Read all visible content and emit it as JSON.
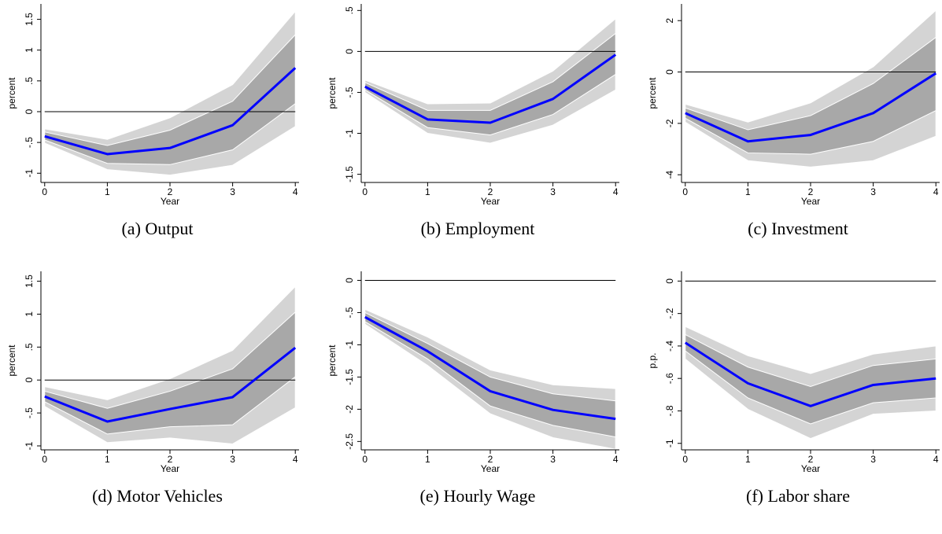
{
  "chart_data": [
    {
      "type": "line",
      "caption": "(a) Output",
      "ylabel": "percent",
      "xlabel": "Year",
      "x": [
        0,
        1,
        2,
        3,
        4
      ],
      "xlim": [
        -0.06,
        4.06
      ],
      "xticks": [
        0,
        1,
        2,
        3,
        4
      ],
      "ylim": [
        -1.15,
        1.75
      ],
      "yticks": [
        {
          "value": -1,
          "label": "-1"
        },
        {
          "value": -0.5,
          "label": "-.5"
        },
        0,
        {
          "value": 0.5,
          "label": ".5"
        },
        1,
        1.5
      ],
      "zero_line": true,
      "bands": [
        {
          "color": "#d4d4d4",
          "lower": [
            -0.51,
            -0.94,
            -1.03,
            -0.87,
            -0.24
          ],
          "upper": [
            -0.28,
            -0.45,
            -0.1,
            0.44,
            1.63
          ]
        },
        {
          "color": "#a8a8a8",
          "lower": [
            -0.46,
            -0.84,
            -0.86,
            -0.62,
            0.13
          ],
          "upper": [
            -0.33,
            -0.55,
            -0.3,
            0.17,
            1.25
          ]
        }
      ],
      "series": [
        {
          "color": "#0000ff",
          "values": [
            -0.4,
            -0.69,
            -0.59,
            -0.22,
            0.71
          ]
        }
      ]
    },
    {
      "type": "line",
      "caption": "(b) Employment",
      "ylabel": "percent",
      "xlabel": "Year",
      "x": [
        0,
        1,
        2,
        3,
        4
      ],
      "xlim": [
        -0.06,
        4.06
      ],
      "xticks": [
        0,
        1,
        2,
        3,
        4
      ],
      "ylim": [
        -1.6,
        0.58
      ],
      "yticks": [
        {
          "value": -1.5,
          "label": "-1.5"
        },
        -1,
        {
          "value": -0.5,
          "label": "-.5"
        },
        0,
        {
          "value": 0.5,
          "label": ".5"
        }
      ],
      "zero_line": true,
      "bands": [
        {
          "color": "#d4d4d4",
          "lower": [
            -0.5,
            -1.0,
            -1.12,
            -0.9,
            -0.47
          ],
          "upper": [
            -0.35,
            -0.64,
            -0.63,
            -0.24,
            0.4
          ]
        },
        {
          "color": "#a8a8a8",
          "lower": [
            -0.47,
            -0.93,
            -1.02,
            -0.77,
            -0.28
          ],
          "upper": [
            -0.38,
            -0.72,
            -0.72,
            -0.37,
            0.22
          ]
        }
      ],
      "series": [
        {
          "color": "#0000ff",
          "values": [
            -0.43,
            -0.83,
            -0.87,
            -0.58,
            -0.04
          ]
        }
      ]
    },
    {
      "type": "line",
      "caption": "(c) Investment",
      "ylabel": "percent",
      "xlabel": "Year",
      "x": [
        0,
        1,
        2,
        3,
        4
      ],
      "xlim": [
        -0.06,
        4.06
      ],
      "xticks": [
        0,
        1,
        2,
        3,
        4
      ],
      "ylim": [
        -4.3,
        2.65
      ],
      "yticks": [
        -4,
        -2,
        0,
        2
      ],
      "zero_line": true,
      "bands": [
        {
          "color": "#d4d4d4",
          "lower": [
            -1.95,
            -3.45,
            -3.7,
            -3.45,
            -2.5
          ],
          "upper": [
            -1.25,
            -1.95,
            -1.2,
            0.2,
            2.4
          ]
        },
        {
          "color": "#a8a8a8",
          "lower": [
            -1.8,
            -3.15,
            -3.2,
            -2.7,
            -1.5
          ],
          "upper": [
            -1.4,
            -2.25,
            -1.7,
            -0.45,
            1.35
          ]
        }
      ],
      "series": [
        {
          "color": "#0000ff",
          "values": [
            -1.6,
            -2.7,
            -2.45,
            -1.6,
            -0.05
          ]
        }
      ]
    },
    {
      "type": "line",
      "caption": "(d) Motor Vehicles",
      "ylabel": "percent",
      "xlabel": "Year",
      "x": [
        0,
        1,
        2,
        3,
        4
      ],
      "xlim": [
        -0.06,
        4.06
      ],
      "xticks": [
        0,
        1,
        2,
        3,
        4
      ],
      "ylim": [
        -1.06,
        1.65
      ],
      "yticks": [
        {
          "value": -1,
          "label": "-1"
        },
        {
          "value": -0.5,
          "label": "-.5"
        },
        0,
        {
          "value": 0.5,
          "label": ".5"
        },
        1,
        1.5
      ],
      "zero_line": true,
      "bands": [
        {
          "color": "#d4d4d4",
          "lower": [
            -0.4,
            -0.95,
            -0.88,
            -0.97,
            -0.42
          ],
          "upper": [
            -0.1,
            -0.3,
            0.02,
            0.45,
            1.42
          ]
        },
        {
          "color": "#a8a8a8",
          "lower": [
            -0.33,
            -0.82,
            -0.71,
            -0.68,
            0.05
          ],
          "upper": [
            -0.17,
            -0.43,
            -0.17,
            0.17,
            1.03
          ]
        }
      ],
      "series": [
        {
          "color": "#0000ff",
          "values": [
            -0.25,
            -0.63,
            -0.44,
            -0.26,
            0.49
          ]
        }
      ]
    },
    {
      "type": "line",
      "caption": "(e) Hourly Wage",
      "ylabel": "percent",
      "xlabel": "Year",
      "x": [
        0,
        1,
        2,
        3,
        4
      ],
      "xlim": [
        -0.06,
        4.06
      ],
      "xticks": [
        0,
        1,
        2,
        3,
        4
      ],
      "ylim": [
        -2.63,
        0.14
      ],
      "yticks": [
        {
          "value": -2.5,
          "label": "-2.5"
        },
        -2,
        {
          "value": -1.5,
          "label": "-1.5"
        },
        -1,
        {
          "value": -0.5,
          "label": "-.5"
        },
        0
      ],
      "zero_line": true,
      "bands": [
        {
          "color": "#d4d4d4",
          "lower": [
            -0.68,
            -1.32,
            -2.07,
            -2.44,
            -2.62
          ],
          "upper": [
            -0.45,
            -0.88,
            -1.39,
            -1.62,
            -1.68
          ]
        },
        {
          "color": "#a8a8a8",
          "lower": [
            -0.64,
            -1.22,
            -1.95,
            -2.25,
            -2.43
          ],
          "upper": [
            -0.5,
            -0.98,
            -1.5,
            -1.76,
            -1.87
          ]
        }
      ],
      "series": [
        {
          "color": "#0000ff",
          "values": [
            -0.57,
            -1.1,
            -1.72,
            -2.01,
            -2.15
          ]
        }
      ]
    },
    {
      "type": "line",
      "caption": "(f) Labor share",
      "ylabel": "p.p.",
      "xlabel": "Year",
      "x": [
        0,
        1,
        2,
        3,
        4
      ],
      "xlim": [
        -0.06,
        4.06
      ],
      "xticks": [
        0,
        1,
        2,
        3,
        4
      ],
      "ylim": [
        -1.04,
        0.06
      ],
      "yticks": [
        -1,
        {
          "value": -0.8,
          "label": "-.8"
        },
        {
          "value": -0.6,
          "label": "-.6"
        },
        {
          "value": -0.4,
          "label": "-.4"
        },
        {
          "value": -0.2,
          "label": "-.2"
        },
        0
      ],
      "zero_line": true,
      "bands": [
        {
          "color": "#d4d4d4",
          "lower": [
            -0.48,
            -0.79,
            -0.97,
            -0.82,
            -0.8
          ],
          "upper": [
            -0.28,
            -0.46,
            -0.57,
            -0.45,
            -0.4
          ]
        },
        {
          "color": "#a8a8a8",
          "lower": [
            -0.43,
            -0.72,
            -0.88,
            -0.75,
            -0.72
          ],
          "upper": [
            -0.33,
            -0.53,
            -0.65,
            -0.52,
            -0.48
          ]
        }
      ],
      "series": [
        {
          "color": "#0000ff",
          "values": [
            -0.38,
            -0.63,
            -0.77,
            -0.64,
            -0.6
          ]
        }
      ]
    }
  ]
}
